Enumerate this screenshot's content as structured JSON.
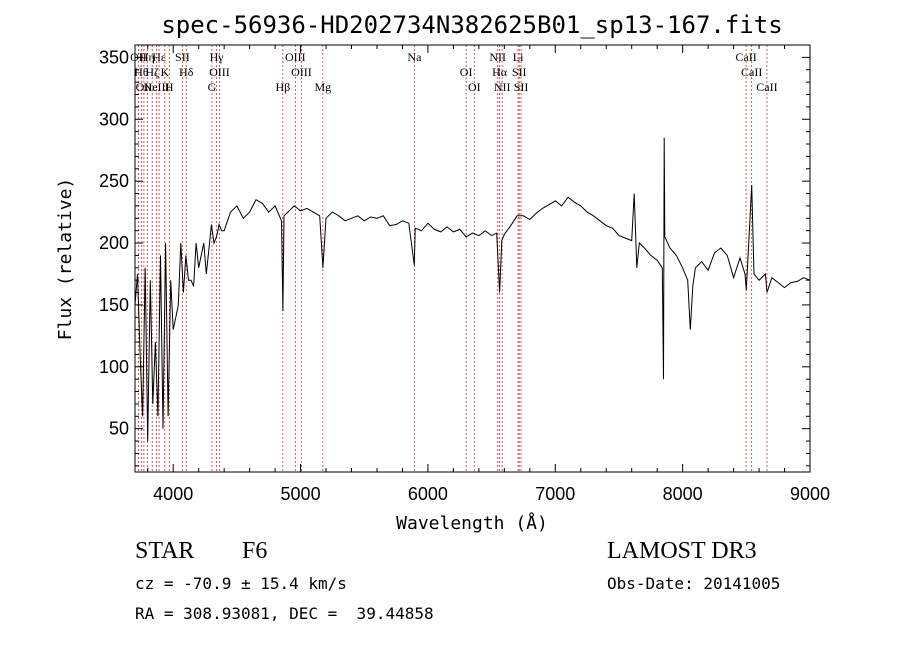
{
  "chart_data": {
    "type": "line",
    "title": "spec-56936-HD202734N382625B01_sp13-167.fits",
    "xlabel": "Wavelength (Å)",
    "ylabel": "Flux (relative)",
    "xlim": [
      3700,
      9000
    ],
    "ylim": [
      15,
      360
    ],
    "xticks": [
      4000,
      5000,
      6000,
      7000,
      8000,
      9000
    ],
    "yticks": [
      50,
      100,
      150,
      200,
      250,
      300,
      350
    ],
    "grid": false,
    "legend": "none",
    "series": [
      {
        "values_are": "approximate flux (relative) read at wavelength (Å)",
        "x": [
          3700,
          3720,
          3740,
          3760,
          3780,
          3800,
          3820,
          3840,
          3860,
          3880,
          3900,
          3920,
          3940,
          3960,
          3980,
          4000,
          4020,
          4040,
          4060,
          4080,
          4100,
          4120,
          4140,
          4160,
          4180,
          4200,
          4220,
          4240,
          4260,
          4280,
          4300,
          4320,
          4340,
          4360,
          4380,
          4400,
          4450,
          4500,
          4550,
          4600,
          4650,
          4700,
          4750,
          4800,
          4850,
          4861,
          4870,
          4900,
          4950,
          5000,
          5050,
          5100,
          5150,
          5175,
          5200,
          5250,
          5300,
          5350,
          5400,
          5450,
          5500,
          5550,
          5600,
          5650,
          5700,
          5750,
          5800,
          5850,
          5893,
          5900,
          5950,
          6000,
          6050,
          6100,
          6150,
          6200,
          6250,
          6300,
          6350,
          6400,
          6450,
          6500,
          6540,
          6563,
          6580,
          6600,
          6650,
          6700,
          6750,
          6800,
          6850,
          6900,
          6950,
          7000,
          7050,
          7100,
          7150,
          7200,
          7250,
          7300,
          7350,
          7400,
          7450,
          7500,
          7550,
          7600,
          7620,
          7640,
          7660,
          7700,
          7750,
          7800,
          7840,
          7850,
          7855,
          7860,
          7900,
          7950,
          8000,
          8040,
          8060,
          8080,
          8100,
          8150,
          8200,
          8250,
          8300,
          8350,
          8400,
          8450,
          8490,
          8500,
          8542,
          8560,
          8600,
          8650,
          8662,
          8700,
          8750,
          8800,
          8850,
          8900,
          8950,
          9000
        ],
        "y": [
          150,
          175,
          110,
          60,
          180,
          40,
          170,
          70,
          120,
          60,
          190,
          50,
          200,
          60,
          170,
          130,
          140,
          150,
          200,
          160,
          190,
          170,
          170,
          165,
          200,
          180,
          190,
          200,
          175,
          195,
          215,
          200,
          205,
          215,
          210,
          210,
          225,
          230,
          220,
          225,
          235,
          232,
          225,
          230,
          218,
          145,
          222,
          225,
          230,
          226,
          228,
          225,
          222,
          180,
          220,
          225,
          222,
          218,
          220,
          222,
          218,
          221,
          220,
          222,
          214,
          215,
          218,
          216,
          182,
          212,
          210,
          216,
          211,
          209,
          213,
          209,
          211,
          205,
          208,
          206,
          210,
          206,
          208,
          160,
          202,
          207,
          214,
          222,
          222,
          219,
          224,
          228,
          231,
          234,
          230,
          237,
          233,
          230,
          225,
          222,
          218,
          214,
          212,
          206,
          204,
          202,
          240,
          180,
          200,
          196,
          190,
          186,
          180,
          90,
          285,
          205,
          196,
          190,
          180,
          170,
          130,
          165,
          180,
          185,
          178,
          192,
          196,
          190,
          172,
          188,
          175,
          162,
          247,
          175,
          170,
          175,
          160,
          172,
          168,
          164,
          168,
          169,
          172,
          170
        ]
      }
    ],
    "line_markers": [
      {
        "wavelength": 3727,
        "label": "OII"
      },
      {
        "wavelength": 3750,
        "label": "Hθ"
      },
      {
        "wavelength": 3770,
        "label": "OII"
      },
      {
        "wavelength": 3797,
        "label": "Hη"
      },
      {
        "wavelength": 3835,
        "label": "Hζ"
      },
      {
        "wavelength": 3869,
        "label": "NeIII"
      },
      {
        "wavelength": 3889,
        "label": "Hε"
      },
      {
        "wavelength": 3934,
        "label": "K"
      },
      {
        "wavelength": 3969,
        "label": "H"
      },
      {
        "wavelength": 4072,
        "label": "SII"
      },
      {
        "wavelength": 4102,
        "label": "Hδ"
      },
      {
        "wavelength": 4304,
        "label": "G"
      },
      {
        "wavelength": 4341,
        "label": "Hγ"
      },
      {
        "wavelength": 4363,
        "label": "OIII"
      },
      {
        "wavelength": 4861,
        "label": "Hβ"
      },
      {
        "wavelength": 4959,
        "label": "OIII"
      },
      {
        "wavelength": 5007,
        "label": "OIII"
      },
      {
        "wavelength": 5175,
        "label": "Mg"
      },
      {
        "wavelength": 5894,
        "label": "Na"
      },
      {
        "wavelength": 6300,
        "label": "OI"
      },
      {
        "wavelength": 6364,
        "label": "OI"
      },
      {
        "wavelength": 6548,
        "label": "NII"
      },
      {
        "wavelength": 6563,
        "label": "Hα"
      },
      {
        "wavelength": 6583,
        "label": "NII"
      },
      {
        "wavelength": 6708,
        "label": "Li"
      },
      {
        "wavelength": 6717,
        "label": "SII"
      },
      {
        "wavelength": 6731,
        "label": "SII"
      },
      {
        "wavelength": 8498,
        "label": "CaII"
      },
      {
        "wavelength": 8542,
        "label": "CaII"
      },
      {
        "wavelength": 8662,
        "label": "CaII"
      }
    ]
  },
  "info": {
    "object_type": "STAR",
    "subclass": "F6",
    "survey": "LAMOST DR3",
    "redshift_line": "cz = -70.9 ± 15.4 km/s",
    "obs_date_line": "Obs-Date: 20141005",
    "coords_line": "RA = 308.93081, DEC =  39.44858"
  }
}
